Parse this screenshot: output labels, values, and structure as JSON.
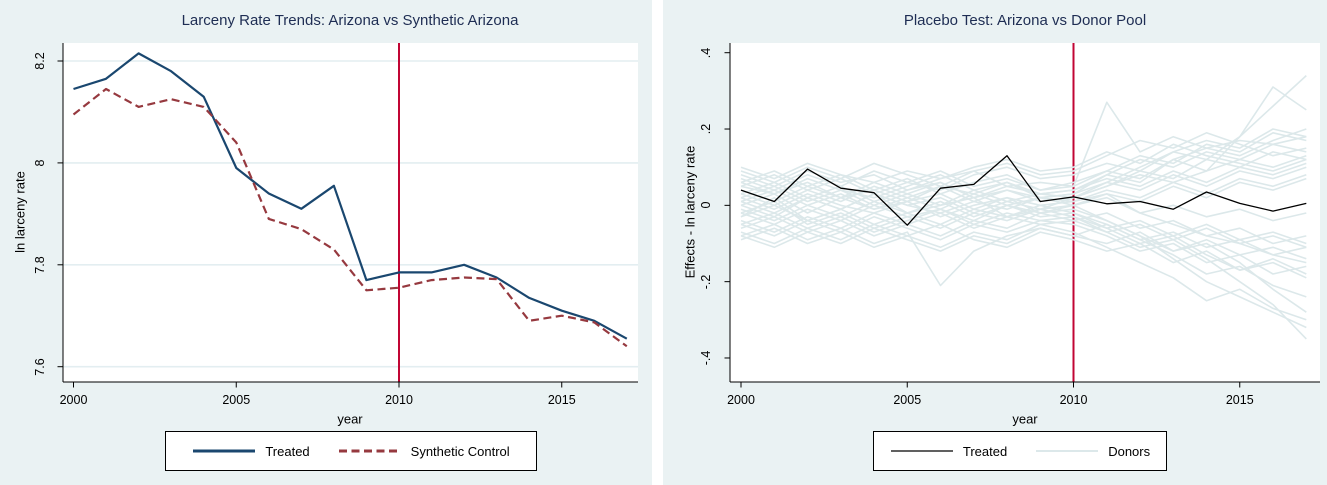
{
  "style_colors": {
    "panel_background": "#eaf2f3",
    "plot_background": "#ffffff",
    "gridline": "#e3eef1",
    "axis": "#000000",
    "title_text": "#1e2d53",
    "tick_text": "#000000"
  },
  "chart_data": [
    {
      "type": "line",
      "title": "Larceny Rate Trends: Arizona vs Synthetic Arizona",
      "xlabel": "year",
      "ylabel": "ln larceny rate",
      "grid": true,
      "legend_position": "bottom",
      "xlim": [
        1999.7,
        2017.35
      ],
      "ylim": [
        7.57,
        8.235
      ],
      "xticks": [
        2000,
        2005,
        2010,
        2015
      ],
      "yticks": [
        {
          "label": "8.2",
          "value": 8.2
        },
        {
          "label": "8",
          "value": 8.0
        },
        {
          "label": "7.8",
          "value": 7.8
        },
        {
          "label": "7.6",
          "value": 7.6
        }
      ],
      "vline": {
        "x": 2010,
        "color": "#c10534",
        "width": 2
      },
      "x": [
        2000,
        2001,
        2002,
        2003,
        2004,
        2005,
        2006,
        2007,
        2008,
        2009,
        2010,
        2011,
        2012,
        2013,
        2014,
        2015,
        2016,
        2017
      ],
      "series": [
        {
          "name": "Treated",
          "color": "#1a476f",
          "width": 2.2,
          "dash": "",
          "values": [
            8.145,
            8.165,
            8.215,
            8.18,
            8.13,
            7.99,
            7.94,
            7.91,
            7.955,
            7.77,
            7.785,
            7.785,
            7.8,
            7.775,
            7.735,
            7.71,
            7.69,
            7.655
          ]
        },
        {
          "name": "Synthetic Control",
          "color": "#96393f",
          "width": 2.2,
          "dash": "8 4.5",
          "values": [
            8.095,
            8.145,
            8.11,
            8.125,
            8.11,
            8.04,
            7.89,
            7.87,
            7.83,
            7.75,
            7.755,
            7.77,
            7.775,
            7.772,
            7.69,
            7.7,
            7.687,
            7.64
          ]
        }
      ]
    },
    {
      "type": "line",
      "title": "Placebo Test: Arizona vs Donor Pool",
      "xlabel": "year",
      "ylabel": "Effects - ln larceny rate",
      "grid": false,
      "legend_position": "bottom",
      "xlim": [
        1999.7,
        2017.4
      ],
      "ylim": [
        -0.463,
        0.425
      ],
      "xticks": [
        2000,
        2005,
        2010,
        2015
      ],
      "yticks": [
        {
          "label": ".4",
          "value": 0.4
        },
        {
          "label": ".2",
          "value": 0.2
        },
        {
          "label": "0",
          "value": 0.0
        },
        {
          "label": "-.2",
          "value": -0.2
        },
        {
          "label": "-.4",
          "value": -0.4
        }
      ],
      "vline": {
        "x": 2010,
        "color": "#c10534",
        "width": 2
      },
      "x": [
        2000,
        2001,
        2002,
        2003,
        2004,
        2005,
        2006,
        2007,
        2008,
        2009,
        2010,
        2011,
        2012,
        2013,
        2014,
        2015,
        2016,
        2017
      ],
      "series": [
        {
          "name": "Treated",
          "color": "#000000",
          "width": 1.3,
          "dash": "",
          "values": [
            0.04,
            0.01,
            0.095,
            0.045,
            0.033,
            -0.052,
            0.045,
            0.055,
            0.13,
            0.01,
            0.022,
            0.004,
            0.01,
            -0.01,
            0.035,
            0.005,
            -0.015,
            0.005
          ]
        }
      ],
      "donors": {
        "label": "Donors",
        "color": "#dce8ea",
        "width": 1.6,
        "series": [
          [
            0.02,
            -0.01,
            0.03,
            0.0,
            -0.02,
            0.01,
            0.03,
            -0.01,
            0.02,
            0.0,
            0.01,
            0.03,
            -0.02,
            -0.05,
            -0.08,
            -0.1,
            -0.13,
            -0.15
          ],
          [
            -0.03,
            0.02,
            -0.04,
            -0.01,
            0.03,
            -0.02,
            0.0,
            0.02,
            -0.03,
            -0.01,
            0.02,
            0.05,
            0.08,
            0.06,
            0.09,
            0.12,
            0.1,
            0.13
          ],
          [
            0.05,
            0.03,
            0.06,
            0.02,
            0.04,
            0.01,
            0.05,
            0.03,
            0.06,
            0.02,
            0.03,
            0.06,
            0.1,
            0.14,
            0.12,
            0.18,
            0.31,
            0.25
          ],
          [
            -0.05,
            -0.08,
            -0.04,
            -0.07,
            -0.03,
            -0.06,
            -0.09,
            -0.05,
            -0.07,
            -0.04,
            -0.05,
            -0.08,
            -0.12,
            -0.1,
            -0.15,
            -0.13,
            -0.18,
            -0.16
          ],
          [
            0.08,
            0.05,
            0.09,
            0.06,
            0.08,
            0.04,
            0.07,
            0.09,
            0.05,
            0.06,
            0.05,
            0.27,
            0.14,
            0.18,
            0.15,
            0.17,
            0.16,
            0.18
          ],
          [
            0.0,
            0.03,
            -0.02,
            0.02,
            -0.01,
            0.01,
            -0.03,
            0.0,
            0.02,
            -0.02,
            0.0,
            -0.04,
            -0.08,
            -0.14,
            -0.2,
            -0.24,
            -0.28,
            -0.32
          ],
          [
            -0.08,
            -0.05,
            -0.09,
            -0.06,
            -0.1,
            -0.07,
            -0.21,
            -0.12,
            -0.08,
            -0.06,
            -0.08,
            -0.1,
            -0.07,
            -0.12,
            -0.09,
            -0.13,
            -0.11,
            -0.14
          ],
          [
            0.03,
            0.06,
            0.02,
            0.05,
            0.01,
            0.04,
            0.06,
            0.02,
            0.05,
            0.03,
            0.04,
            0.07,
            0.05,
            0.09,
            0.06,
            0.1,
            0.08,
            0.11
          ],
          [
            -0.02,
            0.01,
            -0.05,
            -0.02,
            -0.06,
            -0.03,
            -0.01,
            -0.04,
            0.0,
            -0.03,
            -0.02,
            -0.06,
            -0.1,
            -0.08,
            -0.13,
            -0.17,
            -0.15,
            -0.19
          ],
          [
            0.06,
            0.09,
            0.05,
            0.08,
            0.04,
            0.07,
            0.03,
            0.06,
            0.08,
            0.04,
            0.06,
            0.09,
            0.13,
            0.11,
            0.16,
            0.14,
            0.19,
            0.17
          ],
          [
            -0.06,
            -0.03,
            -0.07,
            -0.04,
            -0.08,
            -0.05,
            -0.02,
            -0.06,
            -0.03,
            -0.05,
            -0.04,
            -0.07,
            -0.05,
            -0.09,
            -0.06,
            -0.1,
            -0.08,
            -0.11
          ],
          [
            0.01,
            0.04,
            0.0,
            0.03,
            -0.01,
            0.02,
            0.05,
            0.01,
            0.04,
            0.02,
            0.03,
            0.08,
            0.06,
            0.12,
            0.09,
            0.18,
            0.26,
            0.34
          ],
          [
            -0.01,
            -0.04,
            0.0,
            -0.03,
            0.01,
            -0.02,
            -0.05,
            -0.01,
            -0.03,
            0.0,
            -0.02,
            -0.05,
            -0.09,
            -0.13,
            -0.18,
            -0.16,
            -0.21,
            -0.24
          ],
          [
            0.04,
            0.01,
            0.05,
            0.02,
            0.06,
            0.03,
            0.0,
            0.04,
            0.01,
            0.03,
            0.02,
            0.05,
            0.09,
            0.07,
            0.12,
            0.1,
            0.14,
            0.12
          ],
          [
            -0.04,
            -0.07,
            -0.03,
            -0.06,
            -0.02,
            -0.05,
            -0.08,
            -0.04,
            -0.06,
            -0.02,
            -0.04,
            -0.02,
            -0.06,
            -0.04,
            -0.08,
            -0.06,
            -0.1,
            -0.08
          ],
          [
            0.07,
            0.04,
            0.08,
            0.05,
            0.09,
            0.06,
            0.04,
            0.08,
            0.1,
            0.07,
            0.08,
            0.11,
            0.09,
            0.14,
            0.17,
            0.15,
            0.2,
            0.18
          ],
          [
            -0.07,
            -0.1,
            -0.06,
            -0.09,
            -0.05,
            -0.08,
            -0.11,
            -0.07,
            -0.09,
            -0.05,
            -0.07,
            -0.11,
            -0.15,
            -0.19,
            -0.25,
            -0.22,
            -0.27,
            -0.3
          ],
          [
            0.02,
            0.05,
            0.01,
            0.04,
            0.0,
            0.03,
            0.06,
            0.02,
            0.04,
            0.01,
            0.02,
            0.06,
            0.04,
            0.08,
            0.05,
            0.09,
            0.07,
            0.1
          ],
          [
            -0.09,
            -0.06,
            -0.1,
            -0.07,
            -0.11,
            -0.08,
            -0.05,
            -0.09,
            -0.11,
            -0.07,
            -0.09,
            -0.12,
            -0.1,
            -0.15,
            -0.12,
            -0.17,
            -0.14,
            -0.18
          ],
          [
            0.09,
            0.06,
            0.1,
            0.07,
            0.11,
            0.08,
            0.05,
            0.09,
            0.11,
            0.08,
            0.09,
            0.13,
            0.17,
            0.15,
            0.19,
            0.16,
            0.13,
            0.15
          ],
          [
            0.0,
            -0.03,
            0.02,
            -0.01,
            0.03,
            0.0,
            -0.02,
            0.01,
            -0.01,
            0.02,
            0.0,
            0.03,
            0.01,
            0.05,
            0.02,
            0.06,
            0.04,
            0.07
          ],
          [
            -0.02,
            -0.05,
            -0.01,
            -0.04,
            0.0,
            -0.03,
            -0.06,
            -0.02,
            -0.04,
            -0.01,
            -0.03,
            -0.07,
            -0.11,
            -0.09,
            -0.14,
            -0.2,
            -0.26,
            -0.35
          ],
          [
            0.05,
            0.08,
            0.04,
            0.07,
            0.03,
            0.06,
            0.09,
            0.05,
            0.07,
            0.04,
            0.05,
            0.09,
            0.07,
            0.12,
            0.15,
            0.13,
            0.17,
            0.2
          ],
          [
            -0.05,
            -0.02,
            -0.06,
            -0.03,
            -0.07,
            -0.04,
            -0.01,
            -0.05,
            -0.02,
            -0.04,
            -0.03,
            -0.06,
            -0.04,
            -0.08,
            -0.05,
            -0.09,
            -0.07,
            -0.1
          ],
          [
            0.03,
            0.0,
            0.04,
            0.01,
            0.05,
            0.02,
            -0.01,
            0.03,
            0.0,
            0.02,
            0.01,
            0.04,
            0.02,
            0.06,
            0.03,
            0.07,
            0.05,
            0.08
          ],
          [
            -0.03,
            0.0,
            -0.04,
            -0.01,
            -0.05,
            -0.02,
            0.01,
            -0.03,
            0.0,
            -0.02,
            -0.01,
            -0.04,
            -0.08,
            -0.12,
            -0.1,
            -0.15,
            -0.22,
            -0.28
          ],
          [
            0.06,
            0.03,
            0.07,
            0.04,
            0.02,
            0.05,
            0.08,
            0.04,
            0.06,
            0.03,
            0.04,
            0.08,
            0.12,
            0.1,
            0.14,
            0.12,
            0.16,
            0.14
          ],
          [
            -0.08,
            -0.11,
            -0.07,
            -0.1,
            -0.06,
            -0.09,
            -0.12,
            -0.08,
            -0.1,
            -0.06,
            -0.08,
            -0.05,
            -0.09,
            -0.07,
            -0.11,
            -0.09,
            -0.13,
            -0.11
          ],
          [
            0.01,
            -0.02,
            0.02,
            -0.01,
            0.03,
            0.0,
            0.02,
            -0.02,
            0.01,
            -0.01,
            0.0,
            0.02,
            -0.02,
            0.0,
            -0.03,
            -0.01,
            -0.04,
            -0.02
          ],
          [
            0.1,
            0.07,
            0.11,
            0.08,
            0.06,
            0.09,
            0.07,
            0.1,
            0.12,
            0.09,
            0.1,
            0.14,
            0.11,
            0.16,
            0.13,
            0.11,
            0.09,
            0.12
          ]
        ]
      }
    }
  ]
}
